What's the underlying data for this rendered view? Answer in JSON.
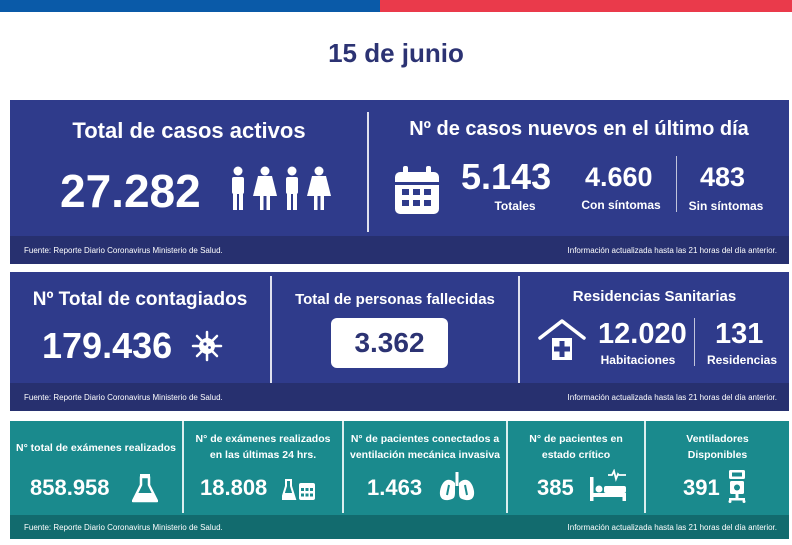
{
  "date": "15 de junio",
  "activos": {
    "title": "Total de casos activos",
    "value": "27.282",
    "icon": "people-icon"
  },
  "nuevos": {
    "title": "Nº de casos nuevos en el último día",
    "totales_value": "5.143",
    "totales_label": "Totales",
    "con_value": "4.660",
    "con_label": "Con síntomas",
    "sin_value": "483",
    "sin_label": "Sin síntomas",
    "icon": "calendar-icon"
  },
  "footer1": {
    "source": "Fuente: Reporte Diario Coronavirus Ministerio de Salud.",
    "info": "Información actualizada hasta las 21 horas  del día anterior."
  },
  "contagiados": {
    "title": "Nº Total de contagiados",
    "value": "179.436",
    "icon": "virus-icon"
  },
  "fallecidos": {
    "title": "Total de personas fallecidas",
    "value": "3.362"
  },
  "residencias": {
    "title": "Residencias Sanitarias",
    "habitaciones_value": "12.020",
    "habitaciones_label": "Habitaciones",
    "residencias_value": "131",
    "residencias_label": "Residencias",
    "icon": "house-medical-icon"
  },
  "footer2": {
    "source": "Fuente: Reporte Diario Coronavirus Ministerio de Salud.",
    "info": "Información actualizada hasta las 21 horas  del día anterior."
  },
  "examenes": {
    "title": "N° total de exámenes realizados",
    "value": "858.958",
    "icon": "flask-icon"
  },
  "examenes24": {
    "title_line1": "N° de exámenes realizados",
    "title_line2": "en las últimas 24 hrs.",
    "value": "18.808",
    "icon": "flask-calendar-icon"
  },
  "ventilacion": {
    "title_line1": "N° de pacientes conectados a",
    "title_line2": "ventilación mecánica invasiva",
    "value": "1.463",
    "icon": "lungs-icon"
  },
  "critico": {
    "title_line1": "N° de pacientes  en",
    "title_line2": "estado crítico",
    "value": "385",
    "icon": "hospital-bed-icon"
  },
  "ventiladores": {
    "title_line1": "Ventiladores",
    "title_line2": "Disponibles",
    "value": "391",
    "icon": "ventilator-icon"
  },
  "footer3": {
    "source": "Fuente: Reporte Diario Coronavirus Ministerio de Salud.",
    "info": "Información actualizada hasta las 21 horas  del día anterior."
  },
  "colors": {
    "navy": "#2f3b8b",
    "navy_dark": "#27306f",
    "teal": "#1a8a8d",
    "teal_dark": "#126b6e",
    "brand_blue": "#0a5aa8",
    "brand_red": "#ea3a4b",
    "date_color": "#2c3373"
  }
}
